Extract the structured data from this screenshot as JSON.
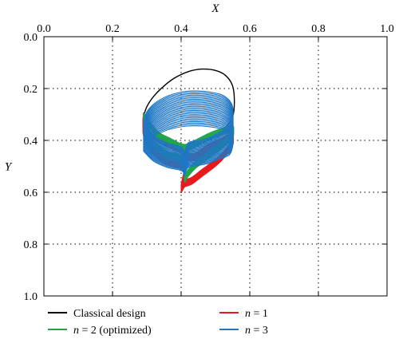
{
  "chart_data": {
    "type": "line",
    "title": "",
    "xlabel": "X",
    "ylabel": "Y",
    "xlim": [
      0.0,
      1.0
    ],
    "ylim": [
      0.0,
      1.0
    ],
    "y_inverted": true,
    "x_axis_position": "top",
    "x_ticks": [
      "0.0",
      "0.2",
      "0.4",
      "0.6",
      "0.8",
      "1.0"
    ],
    "y_ticks": [
      "0.0",
      "0.2",
      "0.4",
      "0.6",
      "0.8",
      "1.0"
    ],
    "grid": true,
    "legend_position": "bottom",
    "series": [
      {
        "name": "Classical design",
        "color": "#000000",
        "x": [
          0.29,
          0.3,
          0.32,
          0.35,
          0.38,
          0.42,
          0.46,
          0.5,
          0.53,
          0.55,
          0.555,
          0.55,
          0.53,
          0.5,
          0.47,
          0.44,
          0.42,
          0.41,
          0.4,
          0.38,
          0.34,
          0.31,
          0.29
        ],
        "y": [
          0.31,
          0.27,
          0.23,
          0.19,
          0.16,
          0.135,
          0.125,
          0.13,
          0.15,
          0.19,
          0.25,
          0.31,
          0.35,
          0.38,
          0.4,
          0.41,
          0.42,
          0.43,
          0.44,
          0.43,
          0.41,
          0.37,
          0.31
        ]
      },
      {
        "name": "n = 1",
        "color": "#e8191c",
        "x": [
          0.29,
          0.29,
          0.31,
          0.34,
          0.37,
          0.4,
          0.41,
          0.4,
          0.41,
          0.43,
          0.46,
          0.5,
          0.53,
          0.55,
          0.55,
          0.53,
          0.5,
          0.47,
          0.45,
          0.43,
          0.415,
          0.4,
          0.37,
          0.33,
          0.29
        ],
        "y": [
          0.32,
          0.38,
          0.44,
          0.48,
          0.5,
          0.51,
          0.53,
          0.6,
          0.58,
          0.57,
          0.54,
          0.5,
          0.46,
          0.42,
          0.4,
          0.41,
          0.43,
          0.45,
          0.47,
          0.48,
          0.47,
          0.45,
          0.43,
          0.39,
          0.32
        ]
      },
      {
        "name": "n = 2 (optimized)",
        "color": "#1fa64a",
        "x": [
          0.29,
          0.3,
          0.33,
          0.36,
          0.39,
          0.405,
          0.41,
          0.41,
          0.42,
          0.44,
          0.47,
          0.5,
          0.53,
          0.55,
          0.55,
          0.52,
          0.48,
          0.45,
          0.42,
          0.4,
          0.37,
          0.33,
          0.29
        ],
        "y": [
          0.32,
          0.39,
          0.44,
          0.47,
          0.48,
          0.49,
          0.51,
          0.56,
          0.54,
          0.51,
          0.48,
          0.45,
          0.42,
          0.39,
          0.37,
          0.38,
          0.4,
          0.42,
          0.44,
          0.44,
          0.42,
          0.39,
          0.32
        ]
      },
      {
        "name": "n = 3",
        "color": "#1f77c4",
        "x": [
          0.29,
          0.3,
          0.32,
          0.35,
          0.38,
          0.42,
          0.46,
          0.49,
          0.52,
          0.54,
          0.55,
          0.55,
          0.54,
          0.51,
          0.48,
          0.45,
          0.42,
          0.41,
          0.405,
          0.39,
          0.36,
          0.32,
          0.29
        ],
        "y": [
          0.33,
          0.29,
          0.26,
          0.235,
          0.22,
          0.21,
          0.21,
          0.215,
          0.225,
          0.245,
          0.27,
          0.31,
          0.35,
          0.37,
          0.39,
          0.4,
          0.41,
          0.45,
          0.43,
          0.42,
          0.41,
          0.38,
          0.33
        ]
      }
    ]
  }
}
